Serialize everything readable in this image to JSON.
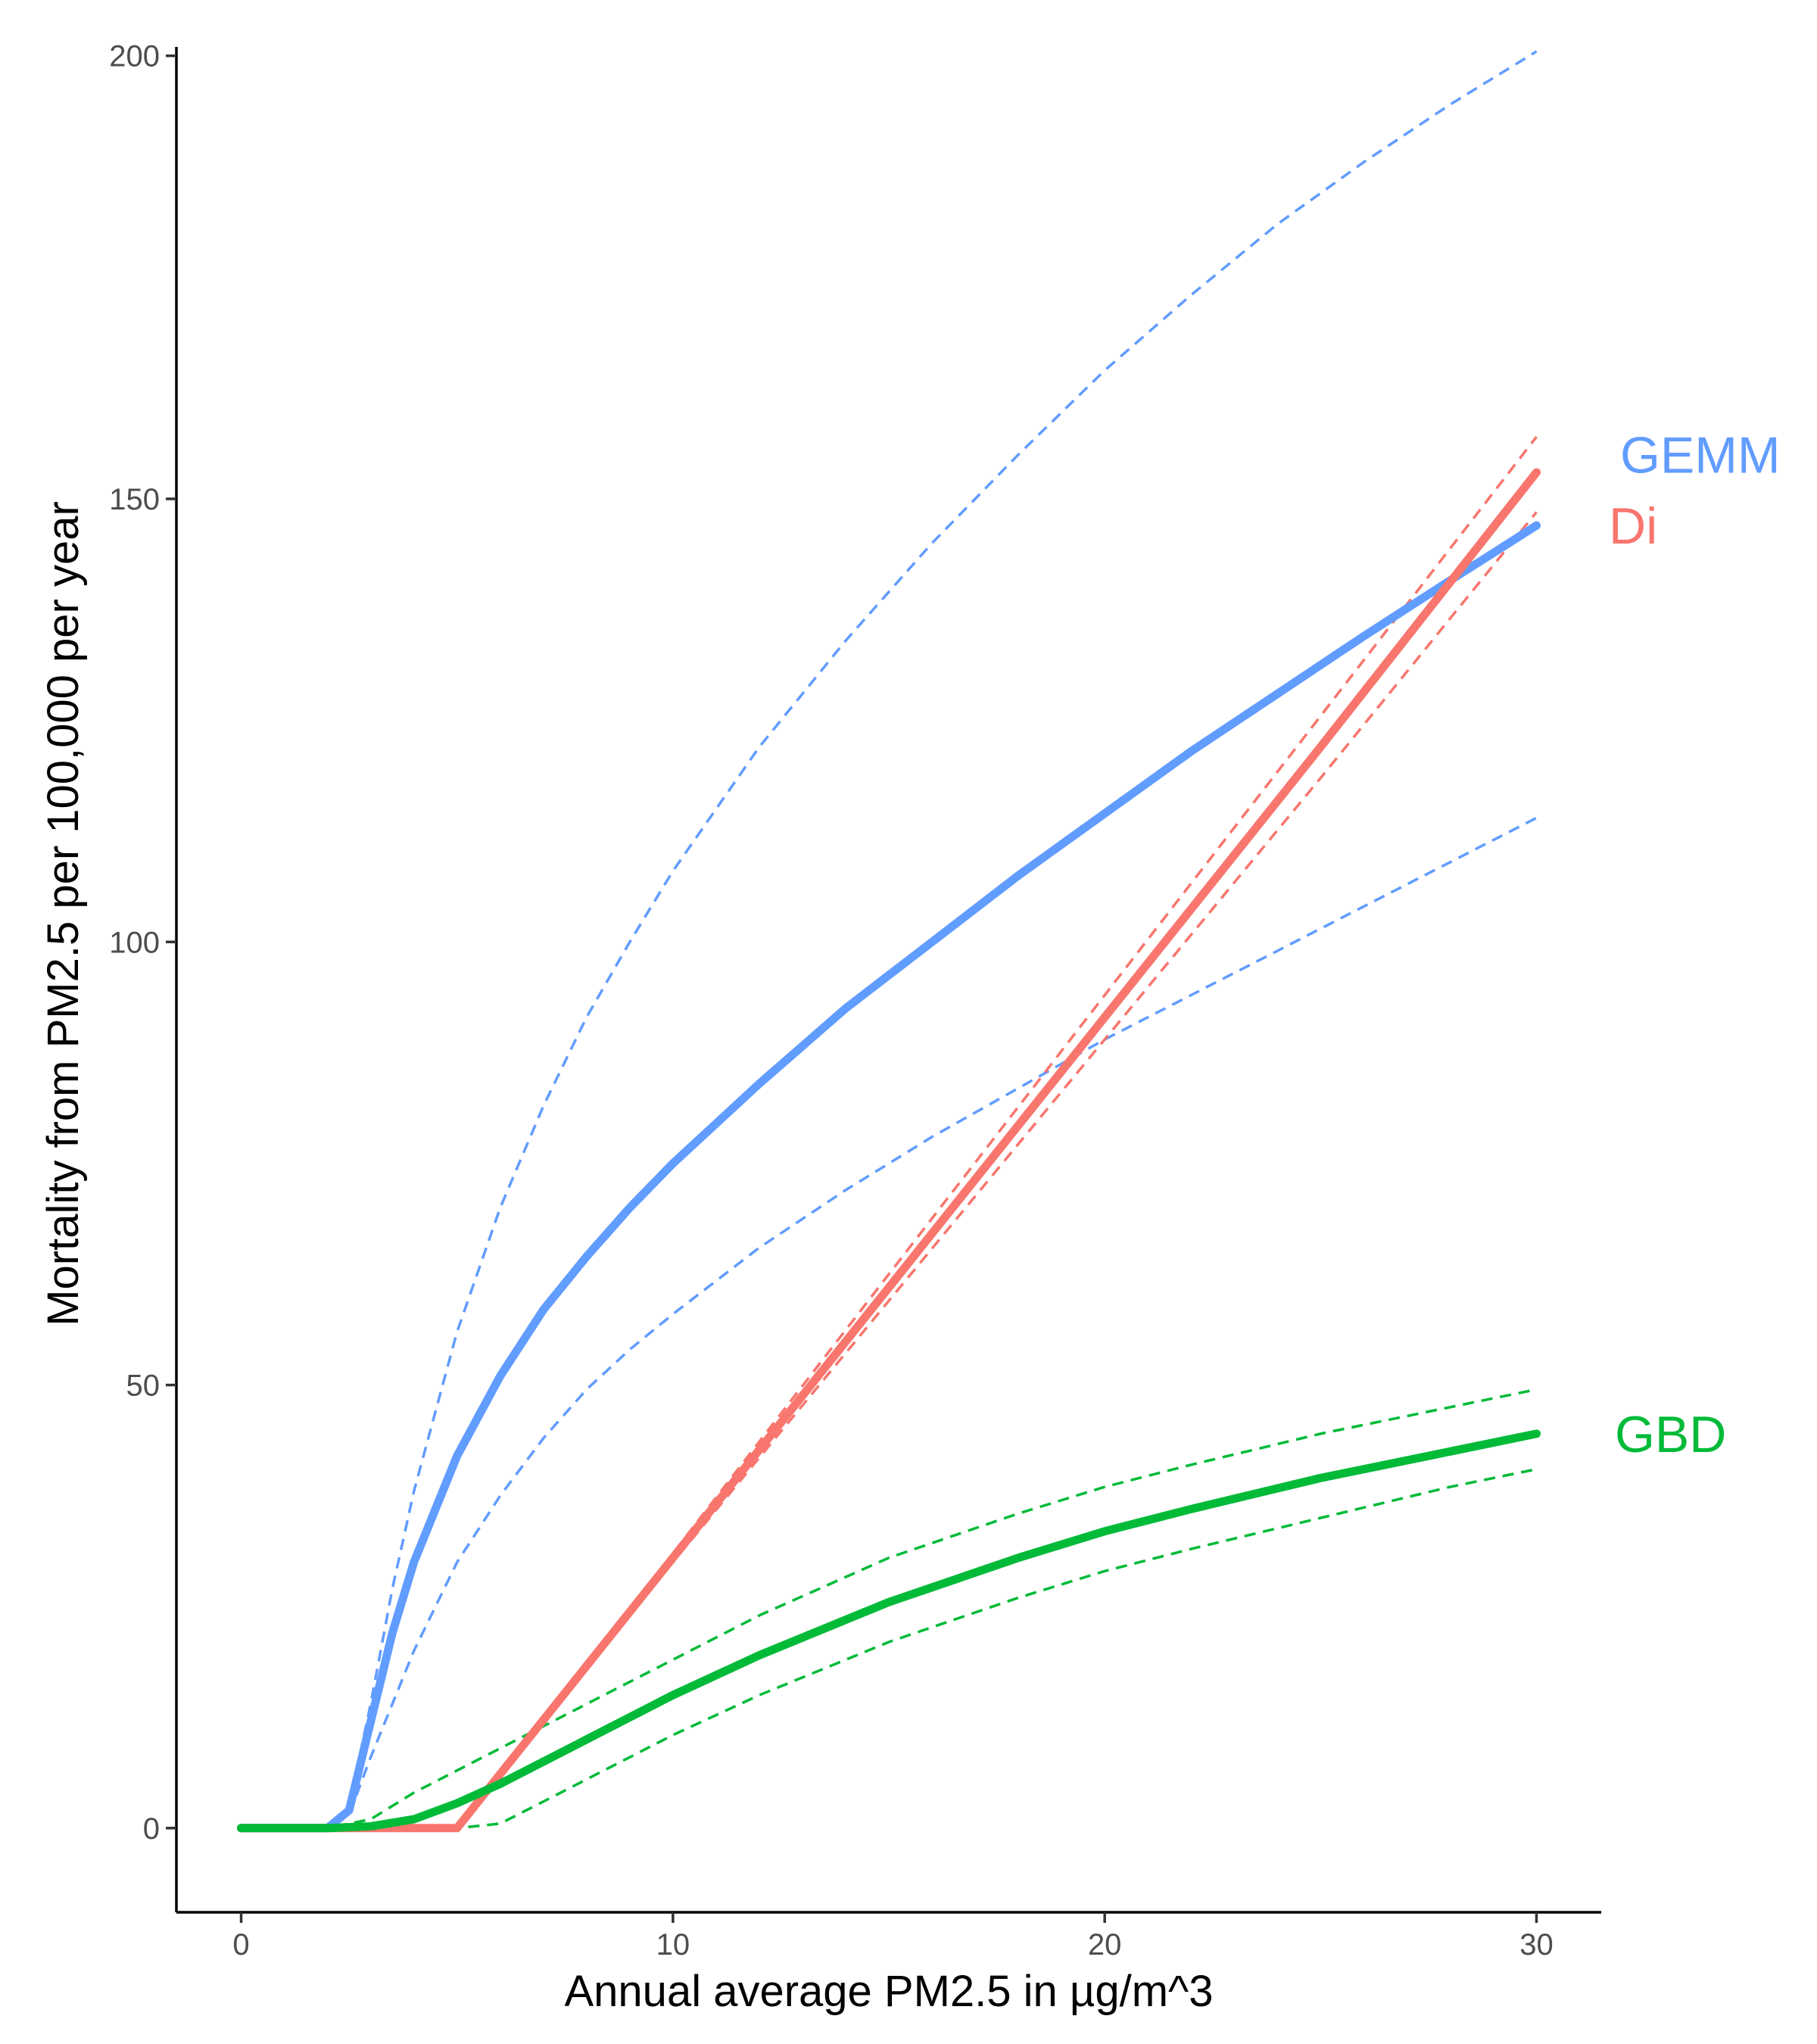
{
  "chart_data": {
    "type": "line",
    "title": "",
    "xlabel": "Annual average PM2.5 in µg/m^3",
    "ylabel": "Mortality from PM2.5 per 100,000 per year",
    "xlim": [
      -1.5,
      31.5
    ],
    "ylim": [
      -9.5,
      201
    ],
    "xticks": [
      0,
      10,
      20,
      30
    ],
    "yticks": [
      0,
      50,
      100,
      150,
      200
    ],
    "grid": false,
    "legend": "direct labels at right end of lines",
    "series": [
      {
        "name": "GEMM",
        "color": "#619CFF",
        "x": [
          0,
          2,
          2.5,
          3,
          3.5,
          4,
          5,
          6,
          7,
          8,
          9,
          10,
          12,
          14,
          16,
          18,
          20,
          22,
          24,
          26,
          28,
          30
        ],
        "mean": [
          0,
          0,
          2,
          12,
          22,
          30,
          42,
          51,
          58.5,
          64.5,
          70,
          75,
          84,
          92.5,
          100,
          107.5,
          114.5,
          121.5,
          128,
          134.5,
          140.8,
          147
        ],
        "lower": [
          0,
          0,
          1.5,
          8,
          14,
          20,
          30,
          37.5,
          44,
          49.5,
          54,
          58,
          65.5,
          72,
          78,
          83.5,
          89,
          94,
          99,
          104,
          109,
          114
        ],
        "upper": [
          0,
          0,
          2.5,
          14,
          27,
          38,
          56,
          70,
          81.5,
          91.5,
          100,
          108,
          122,
          134,
          145,
          155,
          164.5,
          173,
          181,
          188,
          194.5,
          200.5
        ]
      },
      {
        "name": "Di",
        "color": "#F8766D",
        "x": [
          0,
          5,
          10,
          15,
          20,
          25,
          30
        ],
        "mean": [
          0,
          0,
          30.5,
          61,
          91.5,
          122,
          153
        ],
        "lower": [
          0,
          0,
          30,
          59.5,
          89,
          118.5,
          148.5
        ],
        "upper": [
          0,
          0,
          31,
          62.5,
          94,
          125.5,
          157
        ]
      },
      {
        "name": "GBD",
        "color": "#00BA38",
        "x": [
          0,
          2,
          3,
          4,
          5,
          6,
          7,
          8,
          10,
          12,
          15,
          18,
          20,
          22,
          25,
          28,
          30
        ],
        "mean": [
          0,
          0,
          0.2,
          1,
          2.8,
          5,
          7.5,
          10,
          15,
          19.5,
          25.5,
          30.5,
          33.5,
          36,
          39.5,
          42.5,
          44.5
        ],
        "lower": [
          0,
          0,
          0,
          0,
          0,
          0.5,
          3,
          5.5,
          10.5,
          15,
          21,
          26,
          29,
          31.5,
          35,
          38.5,
          40.5
        ],
        "upper": [
          0,
          0,
          1,
          4,
          6.5,
          9,
          11.5,
          14,
          19,
          24,
          30.5,
          35.5,
          38.5,
          41,
          44.5,
          47.5,
          49.5
        ]
      }
    ],
    "label_values": {
      "GEMM": 155,
      "Di": 147,
      "GBD": 44.5
    }
  }
}
